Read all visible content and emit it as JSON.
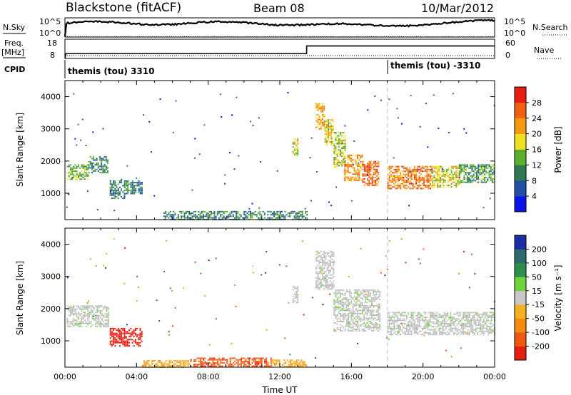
{
  "header": {
    "radar": "Blackstone (fitACF)",
    "beam": "Beam 08",
    "date": "10/Mar/2012"
  },
  "summary": {
    "nsky_label": "N.Sky",
    "nsearch_label": "N.Search",
    "noise_ticks": [
      "10^5",
      "10^0"
    ],
    "freq_label_1": "Freq.",
    "freq_label_2": "[MHz]",
    "freq_ticks": [
      "18",
      "8"
    ],
    "nave_label": "Nave",
    "nave_ticks": [
      "60",
      "0"
    ],
    "cpid_label": "CPID",
    "cpid_1": "themis (tou) 3310",
    "cpid_2": "themis (tou) -3310"
  },
  "colors": {
    "power": [
      "#0a14e8",
      "#234fa8",
      "#2f7a55",
      "#58b02e",
      "#f0e020",
      "#f59a10",
      "#f06010",
      "#e81e10"
    ],
    "velocity": [
      "#1a2ea8",
      "#2e6a6e",
      "#2e8e4e",
      "#6ed43c",
      "#c8c8c8",
      "#f5b020",
      "#f58a10",
      "#f05a10",
      "#e81e10"
    ],
    "ground": "#c0c0c0"
  },
  "chart_data": [
    {
      "type": "heatmap",
      "name": "power",
      "xlabel": "",
      "ylabel": "Slant Range [km]",
      "xlim": [
        0,
        24
      ],
      "ylim": [
        180,
        4500
      ],
      "yticks": [
        1000,
        2000,
        3000,
        4000
      ],
      "colorbar": {
        "label": "Power [dB]",
        "ticks": [
          "4",
          "8",
          "12",
          "16",
          "20",
          "24",
          "28"
        ],
        "range": [
          0,
          32
        ]
      },
      "regions": [
        {
          "t0": 0.1,
          "t1": 1.3,
          "r0": 1450,
          "r1": 1900,
          "value": 14
        },
        {
          "t0": 1.3,
          "t1": 2.4,
          "r0": 1620,
          "r1": 2150,
          "value": 11
        },
        {
          "t0": 2.5,
          "t1": 3.3,
          "r0": 850,
          "r1": 1400,
          "value": 9
        },
        {
          "t0": 3.3,
          "t1": 4.3,
          "r0": 1000,
          "r1": 1400,
          "value": 10
        },
        {
          "t0": 5.5,
          "t1": 13.5,
          "r0": 200,
          "r1": 450,
          "value": 10
        },
        {
          "t0": 12.7,
          "t1": 13.0,
          "r0": 2200,
          "r1": 2700,
          "value": 18
        },
        {
          "t0": 14.0,
          "t1": 14.5,
          "r0": 3000,
          "r1": 3800,
          "value": 21
        },
        {
          "t0": 14.5,
          "t1": 15.0,
          "r0": 2500,
          "r1": 3300,
          "value": 18
        },
        {
          "t0": 15.0,
          "t1": 15.7,
          "r0": 1800,
          "r1": 2900,
          "value": 16
        },
        {
          "t0": 15.6,
          "t1": 16.6,
          "r0": 1400,
          "r1": 2200,
          "value": 22
        },
        {
          "t0": 16.6,
          "t1": 17.5,
          "r0": 1250,
          "r1": 2000,
          "value": 25
        },
        {
          "t0": 18.0,
          "t1": 20.5,
          "r0": 1150,
          "r1": 1850,
          "value": 24
        },
        {
          "t0": 20.5,
          "t1": 22.0,
          "r0": 1200,
          "r1": 1850,
          "value": 18
        },
        {
          "t0": 22.0,
          "t1": 24.0,
          "r0": 1350,
          "r1": 1900,
          "value": 12
        }
      ]
    },
    {
      "type": "heatmap",
      "name": "velocity",
      "xlabel": "Time UT",
      "ylabel": "Slant Range [km]",
      "xlim": [
        0,
        24
      ],
      "ylim": [
        180,
        4500
      ],
      "yticks": [
        1000,
        2000,
        3000,
        4000
      ],
      "xticks": [
        "00:00",
        "04:00",
        "08:00",
        "12:00",
        "16:00",
        "20:00",
        "00:00"
      ],
      "colorbar": {
        "label": "Velocity [m s⁻¹]",
        "ticks": [
          "200",
          "100",
          "50",
          "15",
          "-15",
          "-50",
          "-100",
          "-200"
        ]
      },
      "regions": [
        {
          "t0": 0.1,
          "t1": 2.4,
          "r0": 1450,
          "r1": 2100,
          "value": 0,
          "ground": true
        },
        {
          "t0": 2.5,
          "t1": 4.3,
          "r0": 850,
          "r1": 1400,
          "value": -220
        },
        {
          "t0": 4.3,
          "t1": 7.0,
          "r0": 200,
          "r1": 400,
          "value": -40
        },
        {
          "t0": 7.0,
          "t1": 11.5,
          "r0": 200,
          "r1": 480,
          "value": -140
        },
        {
          "t0": 11.5,
          "t1": 13.5,
          "r0": 200,
          "r1": 420,
          "value": -40
        },
        {
          "t0": 12.7,
          "t1": 13.0,
          "r0": 2200,
          "r1": 2700,
          "value": 0,
          "ground": true
        },
        {
          "t0": 14.0,
          "t1": 15.0,
          "r0": 2600,
          "r1": 3800,
          "value": 0,
          "ground": true
        },
        {
          "t0": 15.0,
          "t1": 17.6,
          "r0": 1300,
          "r1": 2600,
          "value": 0,
          "ground": true
        },
        {
          "t0": 18.0,
          "t1": 24.0,
          "r0": 1200,
          "r1": 1900,
          "value": 0,
          "ground": true
        }
      ]
    }
  ]
}
